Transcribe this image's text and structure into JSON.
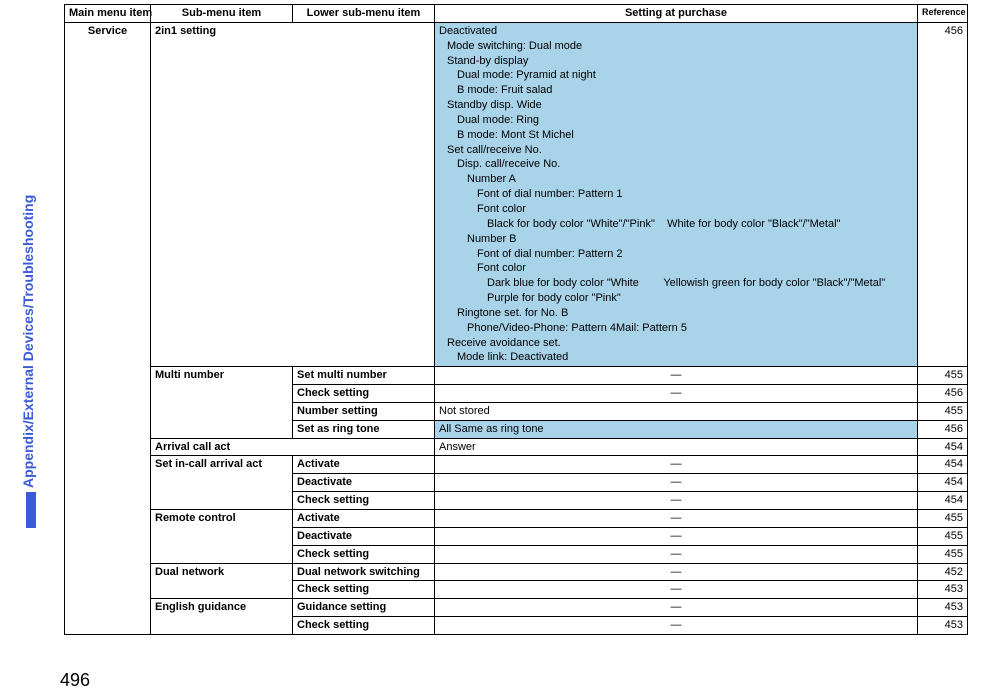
{
  "sideTab": {
    "label": "Appendix/External Devices/Troubleshooting",
    "color": "#3a5bd9"
  },
  "pageNumber": "496",
  "colors": {
    "highlight": "#a9d3e9",
    "border": "#000000",
    "background": "#ffffff"
  },
  "fontSizes": {
    "body": 11,
    "refHeader": 9,
    "sideTab": 14,
    "pageNumber": 18
  },
  "headers": {
    "c1": "Main menu item",
    "c2": "Sub-menu item",
    "c3": "Lower sub-menu item",
    "c4": "Setting at purchase",
    "c5": "Reference"
  },
  "mainMenu": "Service",
  "sub2in1": "2in1 setting",
  "settingBlock": {
    "l1": "Deactivated",
    "l2": "Mode switching: Dual mode",
    "l3": "Stand-by display",
    "l4": "Dual mode: Pyramid at night",
    "l5": "B mode: Fruit salad",
    "l6": "Standby disp. Wide",
    "l7": "Dual mode: Ring",
    "l8": "B mode: Mont St Michel",
    "l9": "Set call/receive No.",
    "l10": "Disp. call/receive No.",
    "l11": "Number A",
    "l12": "Font of dial number: Pattern 1",
    "l13": "Font color",
    "l14a": "Black for body color \"White\"/\"Pink\"",
    "l14b": "White for body color \"Black\"/\"Metal\"",
    "l15": "Number B",
    "l16": "Font of dial number: Pattern 2",
    "l17": "Font color",
    "l18a": "Dark blue for body color \"White",
    "l18b": "Yellowish green for body color \"Black\"/\"Metal\"",
    "l19": "Purple for body color \"Pink\"",
    "l20": "Ringtone set. for No. B",
    "l21": "Phone/Video-Phone: Pattern 4Mail: Pattern 5",
    "l22": "Receive avoidance set.",
    "l23": "Mode link: Deactivated"
  },
  "ref2in1": "456",
  "rows": [
    {
      "sub": "Multi number",
      "rowspan": 4,
      "lower": "Set multi number",
      "setting": "―",
      "settingCenter": true,
      "hl": false,
      "ref": "455"
    },
    {
      "sub": null,
      "lower": "Check setting",
      "setting": "―",
      "settingCenter": true,
      "hl": false,
      "ref": "456"
    },
    {
      "sub": null,
      "lower": "Number setting",
      "setting": "Not stored",
      "settingCenter": false,
      "hl": false,
      "ref": "455"
    },
    {
      "sub": null,
      "lower": "Set as ring tone",
      "setting": "All Same as ring tone",
      "settingCenter": false,
      "hl": true,
      "ref": "456"
    },
    {
      "sub": "Arrival call act",
      "rowspan": 1,
      "colspan": 2,
      "lower": null,
      "setting": "Answer",
      "settingCenter": false,
      "hl": false,
      "ref": "454"
    },
    {
      "sub": "Set in-call arrival act",
      "rowspan": 3,
      "lower": "Activate",
      "setting": "―",
      "settingCenter": true,
      "hl": false,
      "ref": "454"
    },
    {
      "sub": null,
      "lower": "Deactivate",
      "setting": "―",
      "settingCenter": true,
      "hl": false,
      "ref": "454"
    },
    {
      "sub": null,
      "lower": "Check setting",
      "setting": "―",
      "settingCenter": true,
      "hl": false,
      "ref": "454"
    },
    {
      "sub": "Remote control",
      "rowspan": 3,
      "lower": "Activate",
      "setting": "―",
      "settingCenter": true,
      "hl": false,
      "ref": "455"
    },
    {
      "sub": null,
      "lower": "Deactivate",
      "setting": "―",
      "settingCenter": true,
      "hl": false,
      "ref": "455"
    },
    {
      "sub": null,
      "lower": "Check setting",
      "setting": "―",
      "settingCenter": true,
      "hl": false,
      "ref": "455"
    },
    {
      "sub": "Dual network",
      "rowspan": 2,
      "lower": "Dual network switching",
      "setting": "―",
      "settingCenter": true,
      "hl": false,
      "ref": "452"
    },
    {
      "sub": null,
      "lower": "Check setting",
      "setting": "―",
      "settingCenter": true,
      "hl": false,
      "ref": "453"
    },
    {
      "sub": "English guidance",
      "rowspan": 2,
      "lower": "Guidance setting",
      "setting": "―",
      "settingCenter": true,
      "hl": false,
      "ref": "453"
    },
    {
      "sub": null,
      "lower": "Check setting",
      "setting": "―",
      "settingCenter": true,
      "hl": false,
      "ref": "453"
    }
  ]
}
